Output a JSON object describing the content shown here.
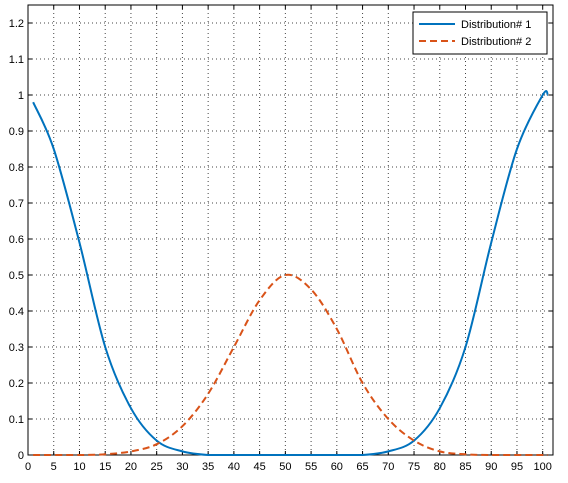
{
  "chart_data": {
    "type": "line",
    "title": "",
    "xlabel": "",
    "ylabel": "",
    "xlim": [
      0,
      102
    ],
    "ylim": [
      0,
      1.25
    ],
    "xticks": [
      0,
      5,
      10,
      15,
      20,
      25,
      30,
      35,
      40,
      45,
      50,
      55,
      60,
      65,
      70,
      75,
      80,
      85,
      90,
      95,
      100
    ],
    "yticks": [
      0,
      0.1,
      0.2,
      0.3,
      0.4,
      0.5,
      0.6,
      0.7,
      0.8,
      0.9,
      1,
      1.1,
      1.2
    ],
    "grid": true,
    "legend": "top-right",
    "series": [
      {
        "name": "Distribution# 1",
        "color": "#0072BD",
        "style": "solid",
        "x": [
          1,
          5,
          10,
          15,
          20,
          25,
          30,
          35,
          40,
          45,
          50,
          55,
          60,
          65,
          70,
          75,
          80,
          85,
          90,
          95,
          100,
          101
        ],
        "y": [
          0.98,
          0.85,
          0.59,
          0.3,
          0.13,
          0.04,
          0.01,
          0.0,
          0.0,
          0.0,
          0.0,
          0.0,
          0.0,
          0.0,
          0.01,
          0.04,
          0.13,
          0.3,
          0.59,
          0.85,
          1.0,
          1.0
        ]
      },
      {
        "name": "Distribution# 2",
        "color": "#D95319",
        "style": "dashed",
        "x": [
          1,
          10,
          15,
          20,
          25,
          30,
          35,
          40,
          45,
          50,
          55,
          60,
          65,
          70,
          75,
          80,
          85,
          90,
          101
        ],
        "y": [
          0.0,
          0.0,
          0.002,
          0.01,
          0.03,
          0.08,
          0.17,
          0.3,
          0.43,
          0.5,
          0.46,
          0.35,
          0.2,
          0.1,
          0.04,
          0.01,
          0.002,
          0.0,
          0.0
        ]
      }
    ]
  }
}
